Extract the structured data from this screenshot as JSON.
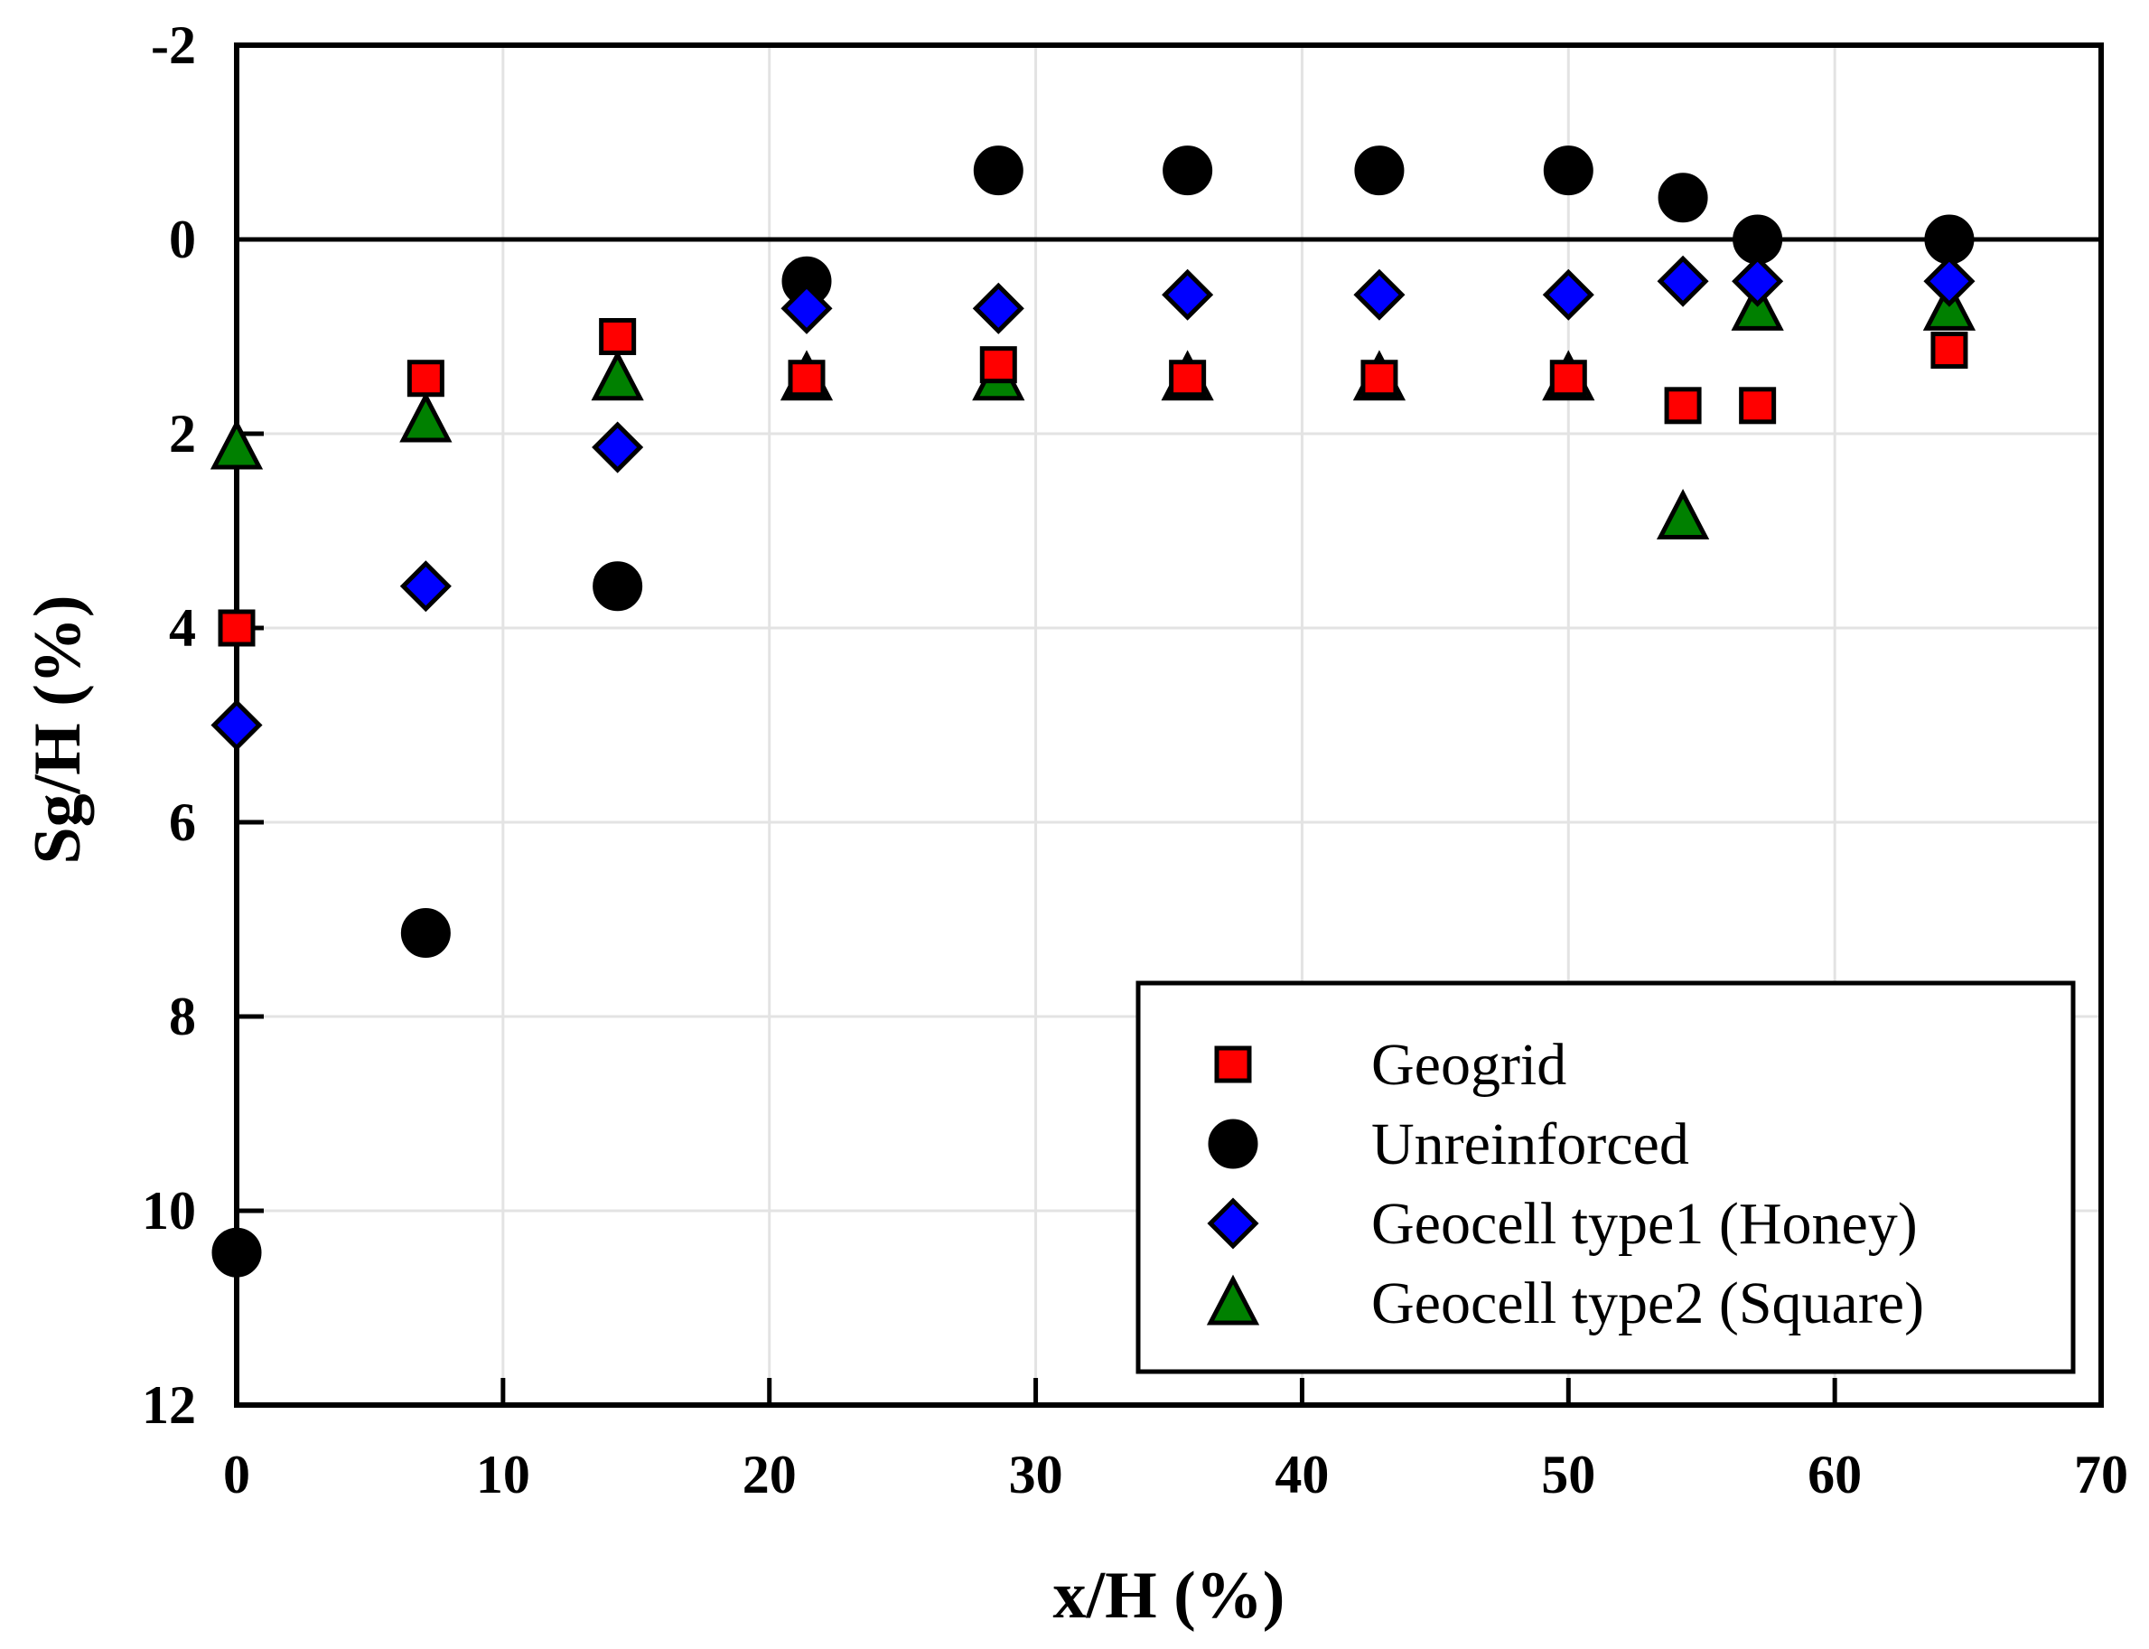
{
  "chart_data": {
    "type": "scatter",
    "title": "",
    "xlabel": "x/H (%)",
    "ylabel": "Sg/H (%)",
    "xlim": [
      0,
      70
    ],
    "ylim": [
      -2,
      12
    ],
    "y_inverted": true,
    "xticks": [
      0,
      10,
      20,
      30,
      40,
      50,
      60,
      70
    ],
    "yticks": [
      -2,
      0,
      2,
      4,
      6,
      8,
      10,
      12
    ],
    "grid": true,
    "reference_line_y": 0,
    "legend_position": "bottom-right",
    "series": [
      {
        "name": "Geogrid",
        "marker": "square",
        "color": "#ff0000",
        "points": [
          [
            0,
            4.0
          ],
          [
            7.1,
            1.43
          ],
          [
            14.3,
            1.0
          ],
          [
            21.4,
            1.43
          ],
          [
            28.6,
            1.29
          ],
          [
            35.7,
            1.43
          ],
          [
            42.9,
            1.43
          ],
          [
            50.0,
            1.43
          ],
          [
            54.3,
            1.71
          ],
          [
            57.1,
            1.71
          ],
          [
            64.3,
            1.14
          ]
        ]
      },
      {
        "name": "Unreinforced",
        "marker": "circle",
        "color": "#000000",
        "points": [
          [
            0,
            10.43
          ],
          [
            7.1,
            7.14
          ],
          [
            14.3,
            3.57
          ],
          [
            21.4,
            0.43
          ],
          [
            28.6,
            -0.71
          ],
          [
            35.7,
            -0.71
          ],
          [
            42.9,
            -0.71
          ],
          [
            50.0,
            -0.71
          ],
          [
            54.3,
            -0.43
          ],
          [
            57.1,
            0.0
          ],
          [
            64.3,
            0.0
          ]
        ]
      },
      {
        "name": "Geocell type1 (Honey)",
        "marker": "diamond",
        "color": "#0000ff",
        "points": [
          [
            0,
            5.0
          ],
          [
            7.1,
            3.57
          ],
          [
            14.3,
            2.14
          ],
          [
            21.4,
            0.71
          ],
          [
            28.6,
            0.71
          ],
          [
            35.7,
            0.57
          ],
          [
            42.9,
            0.57
          ],
          [
            50.0,
            0.57
          ],
          [
            54.3,
            0.43
          ],
          [
            57.1,
            0.43
          ],
          [
            64.3,
            0.43
          ]
        ]
      },
      {
        "name": "Geocell type2 (Square)",
        "marker": "triangle",
        "color": "#008000",
        "points": [
          [
            0,
            2.14
          ],
          [
            7.1,
            1.86
          ],
          [
            14.3,
            1.43
          ],
          [
            21.4,
            1.43
          ],
          [
            28.6,
            1.43
          ],
          [
            35.7,
            1.43
          ],
          [
            42.9,
            1.43
          ],
          [
            50.0,
            1.43
          ],
          [
            54.3,
            2.86
          ],
          [
            57.1,
            0.71
          ],
          [
            64.3,
            0.71
          ]
        ]
      }
    ]
  }
}
